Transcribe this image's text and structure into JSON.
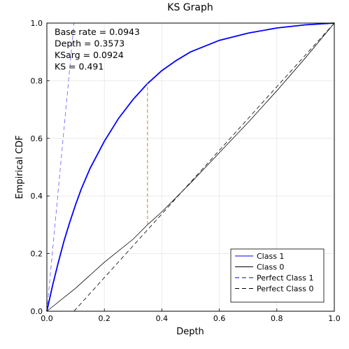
{
  "chart_data": {
    "type": "line",
    "title": "KS Graph",
    "xlabel": "Depth",
    "ylabel": "Empirical CDF",
    "xlim": [
      0,
      1
    ],
    "ylim": [
      0,
      1
    ],
    "grid": true,
    "x_ticks": [
      "0.0",
      "0.2",
      "0.4",
      "0.6",
      "0.8",
      "1.0"
    ],
    "y_ticks": [
      "0.0",
      "0.2",
      "0.4",
      "0.6",
      "0.8",
      "1.0"
    ],
    "legend_position": "bottom-right",
    "annotations": [
      "Base rate = 0.0943",
      "Depth = 0.3573",
      "KSarg = 0.0924",
      "KS = 0.491"
    ],
    "series": [
      {
        "name": "Class 1",
        "color": "#0000ff",
        "style": "solid",
        "x": [
          0,
          0.02,
          0.04,
          0.06,
          0.08,
          0.1,
          0.12,
          0.15,
          0.2,
          0.25,
          0.3,
          0.35,
          0.4,
          0.45,
          0.5,
          0.6,
          0.7,
          0.8,
          0.9,
          1.0
        ],
        "y": [
          0,
          0.09,
          0.17,
          0.245,
          0.31,
          0.37,
          0.425,
          0.495,
          0.59,
          0.67,
          0.735,
          0.79,
          0.835,
          0.87,
          0.9,
          0.94,
          0.965,
          0.983,
          0.994,
          1.0
        ]
      },
      {
        "name": "Class 0",
        "color": "#000000",
        "style": "solid",
        "x": [
          0,
          0.1,
          0.2,
          0.3,
          0.35,
          0.4,
          0.5,
          0.6,
          0.7,
          0.8,
          0.9,
          1.0
        ],
        "y": [
          0,
          0.08,
          0.17,
          0.25,
          0.3,
          0.345,
          0.445,
          0.55,
          0.655,
          0.765,
          0.88,
          1.0
        ]
      },
      {
        "name": "Perfect Class 1",
        "color": "#0000ff",
        "style": "dashed",
        "x": [
          0,
          0.0943,
          1.0
        ],
        "y": [
          0,
          1.0,
          1.0
        ]
      },
      {
        "name": "Perfect Class 0",
        "color": "#000000",
        "style": "dashed",
        "x": [
          0.0943,
          1.0
        ],
        "y": [
          0,
          1.0
        ]
      }
    ],
    "ks_line": {
      "x": 0.35,
      "y_from": 0.3,
      "y_to": 0.79,
      "color": "#c8a45a"
    }
  }
}
